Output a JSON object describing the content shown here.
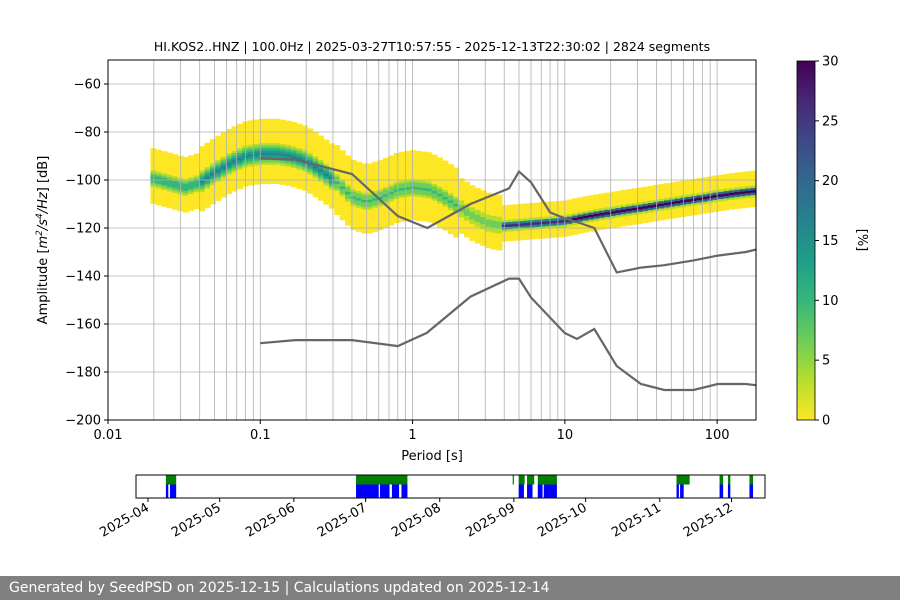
{
  "chart_data": [
    {
      "type": "heatmap",
      "title": "HI.KOS2..HNZ | 100.0Hz | 2025-03-27T10:57:55 - 2025-12-13T22:30:02 | 2824 segments",
      "xlabel": "Period [s]",
      "ylabel_parts": [
        "Amplitude [",
        "m",
        "2",
        "/s",
        "4",
        "/Hz",
        "] [dB]"
      ],
      "xscale": "log",
      "xlim": [
        0.01,
        180
      ],
      "ylim": [
        -200,
        -50
      ],
      "x_ticks": [
        0.01,
        0.1,
        1,
        10,
        100
      ],
      "x_tick_labels": [
        "0.01",
        "0.1",
        "1",
        "10",
        "100"
      ],
      "y_ticks": [
        -200,
        -180,
        -160,
        -140,
        -120,
        -100,
        -80,
        -60
      ],
      "y_tick_labels": [
        "−200",
        "−180",
        "−160",
        "−140",
        "−120",
        "−100",
        "−80",
        "−60"
      ],
      "grid": true,
      "colorbar": {
        "label": "[%]",
        "range": [
          0,
          30
        ],
        "ticks": [
          0,
          5,
          10,
          15,
          20,
          25,
          30
        ],
        "tick_labels": [
          "0",
          "5",
          "10",
          "15",
          "20",
          "25",
          "30"
        ],
        "colormap": [
          "#fde725",
          "#b5de2b",
          "#6ece58",
          "#35b779",
          "#1f9e89",
          "#26828e",
          "#31688e",
          "#3e4989",
          "#482878",
          "#440154"
        ]
      },
      "psd_mode": {
        "period": [
          0.019,
          0.025,
          0.032,
          0.04,
          0.05,
          0.063,
          0.08,
          0.1,
          0.13,
          0.16,
          0.2,
          0.25,
          0.32,
          0.4,
          0.5,
          0.63,
          0.8,
          1.0,
          1.3,
          1.6,
          2.0,
          2.5,
          3.2,
          4.0,
          5.0,
          6.3,
          8.0,
          10,
          13,
          16,
          20,
          25,
          32,
          40,
          50,
          63,
          80,
          100,
          130,
          180
        ],
        "db": [
          -99,
          -101,
          -103,
          -101,
          -97,
          -93,
          -90,
          -89,
          -89,
          -90,
          -92,
          -96,
          -101,
          -107,
          -109,
          -107,
          -104,
          -103,
          -104,
          -107,
          -111,
          -115,
          -118,
          -119,
          -118.5,
          -118,
          -117.5,
          -117,
          -115.5,
          -114.5,
          -113.5,
          -112.5,
          -111.5,
          -110.5,
          -109.5,
          -108.5,
          -107.5,
          -106.5,
          -105.5,
          -104.5
        ]
      },
      "nhnm": {
        "period": [
          0.1,
          0.17,
          0.4,
          0.8,
          1.25,
          2.4,
          4.3,
          5.0,
          6.0,
          8.0,
          10,
          12,
          15.6,
          21.9,
          31.6,
          45,
          70,
          101,
          154,
          180
        ],
        "db": [
          -91,
          -91.5,
          -97.5,
          -115,
          -120,
          -110,
          -103.5,
          -96.5,
          -101,
          -113.5,
          -116,
          -117.5,
          -120,
          -138.5,
          -136.5,
          -135.5,
          -133.5,
          -131.5,
          -130,
          -129
        ]
      },
      "nlnm": {
        "period": [
          0.1,
          0.17,
          0.4,
          0.8,
          1.24,
          2.4,
          4.3,
          5.0,
          6.0,
          10,
          12,
          15.6,
          21.9,
          31.6,
          45,
          70,
          101,
          154,
          180
        ],
        "db": [
          -168,
          -166.7,
          -166.7,
          -169.2,
          -163.7,
          -148.6,
          -141.1,
          -141.1,
          -149,
          -163.8,
          -166.2,
          -162.1,
          -177.5,
          -185,
          -187.5,
          -187.5,
          -185,
          -185,
          -185.5
        ]
      },
      "noise_model_color": "#666666"
    },
    {
      "type": "timeline",
      "x_tick_labels": [
        "2025-04",
        "2025-05",
        "2025-06",
        "2025-07",
        "2025-08",
        "2025-09",
        "2025-10",
        "2025-11",
        "2025-12"
      ],
      "x_tick_days": [
        5,
        35,
        66,
        96,
        127,
        158,
        188,
        219,
        249
      ],
      "colors": {
        "data": "#0000ff",
        "processed": "#008000"
      },
      "data_spans": [
        [
          12.5,
          13.5
        ],
        [
          14.2,
          16.8
        ],
        [
          92,
          101.5
        ],
        [
          102,
          106
        ],
        [
          107,
          110
        ],
        [
          111,
          113.5
        ],
        [
          160,
          162.2
        ],
        [
          163.5,
          165.8
        ],
        [
          168,
          170
        ],
        [
          170.5,
          176
        ],
        [
          226,
          227
        ],
        [
          227.5,
          229
        ],
        [
          244,
          245.5
        ],
        [
          247.5,
          248.5
        ],
        [
          256.5,
          258
        ]
      ],
      "processed_spans": [
        [
          12.5,
          16.8
        ],
        [
          92,
          113.5
        ],
        [
          157.5,
          158
        ],
        [
          160,
          162.5
        ],
        [
          163.5,
          166.5
        ],
        [
          168,
          176
        ],
        [
          226,
          231.5
        ],
        [
          244,
          245.5
        ],
        [
          247.5,
          248.5
        ],
        [
          256.5,
          258
        ]
      ]
    }
  ],
  "footer": {
    "text": "Generated by SeedPSD on 2025-12-15 | Calculations updated on 2025-12-14"
  }
}
